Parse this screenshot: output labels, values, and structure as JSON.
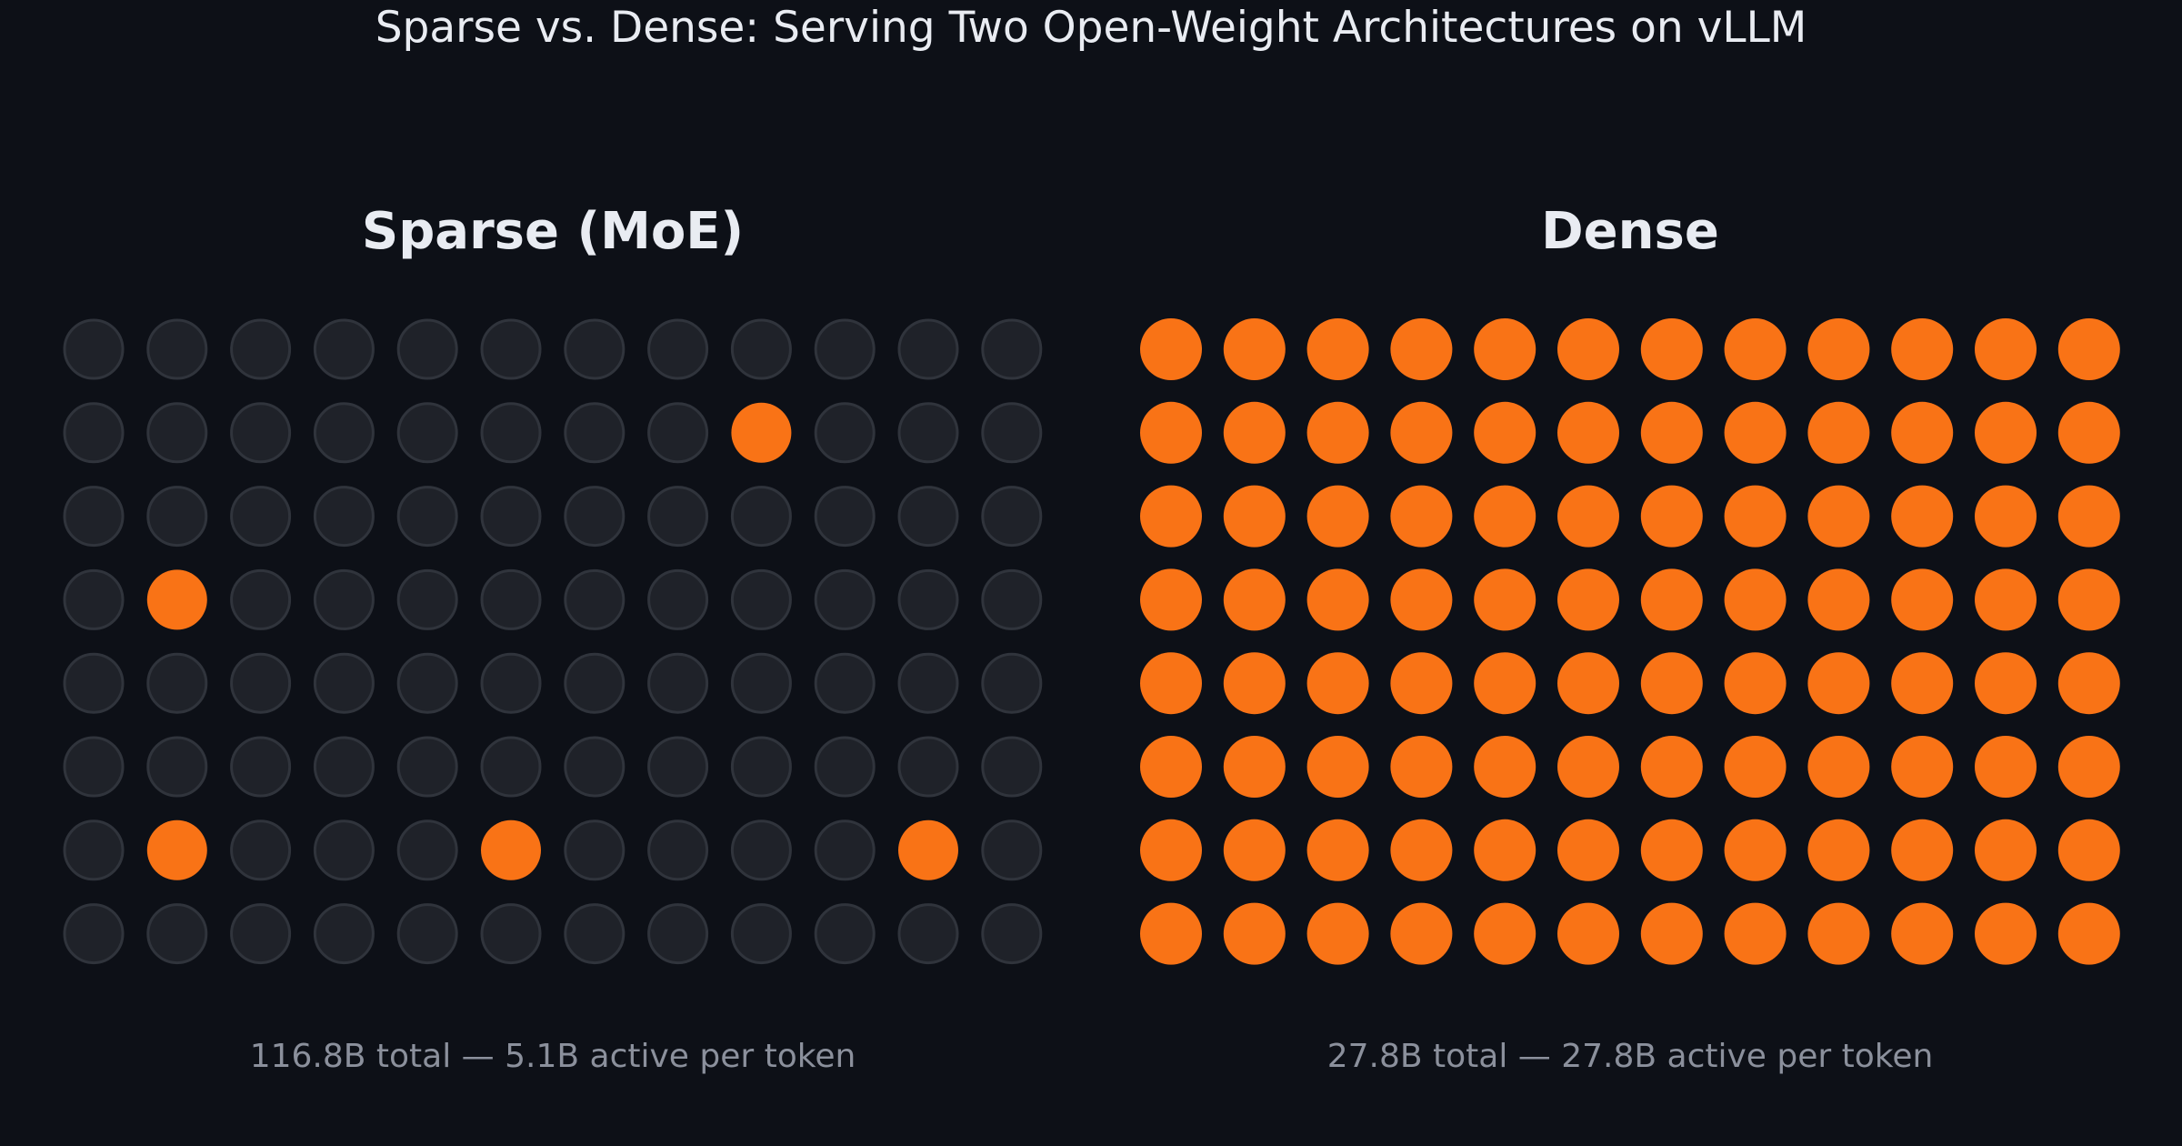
{
  "title": "Sparse vs. Dense: Serving Two Open-Weight Architectures on vLLM",
  "colors": {
    "background": "#0d1017",
    "active": "#f97316",
    "inactive_fill": "#1f2229",
    "inactive_stroke": "#30343c",
    "title": "#e9ecf2",
    "caption": "#8b909c"
  },
  "panels": [
    {
      "title": "Sparse (MoE)",
      "caption": "116.8B total — 5.1B active per token",
      "grid": {
        "rows": 8,
        "cols": 12
      },
      "active_cells": [
        [
          1,
          8
        ],
        [
          3,
          1
        ],
        [
          6,
          1
        ],
        [
          6,
          5
        ],
        [
          6,
          10
        ]
      ]
    },
    {
      "title": "Dense",
      "caption": "27.8B total — 27.8B active per token",
      "grid": {
        "rows": 8,
        "cols": 12
      },
      "all_active": true
    }
  ]
}
